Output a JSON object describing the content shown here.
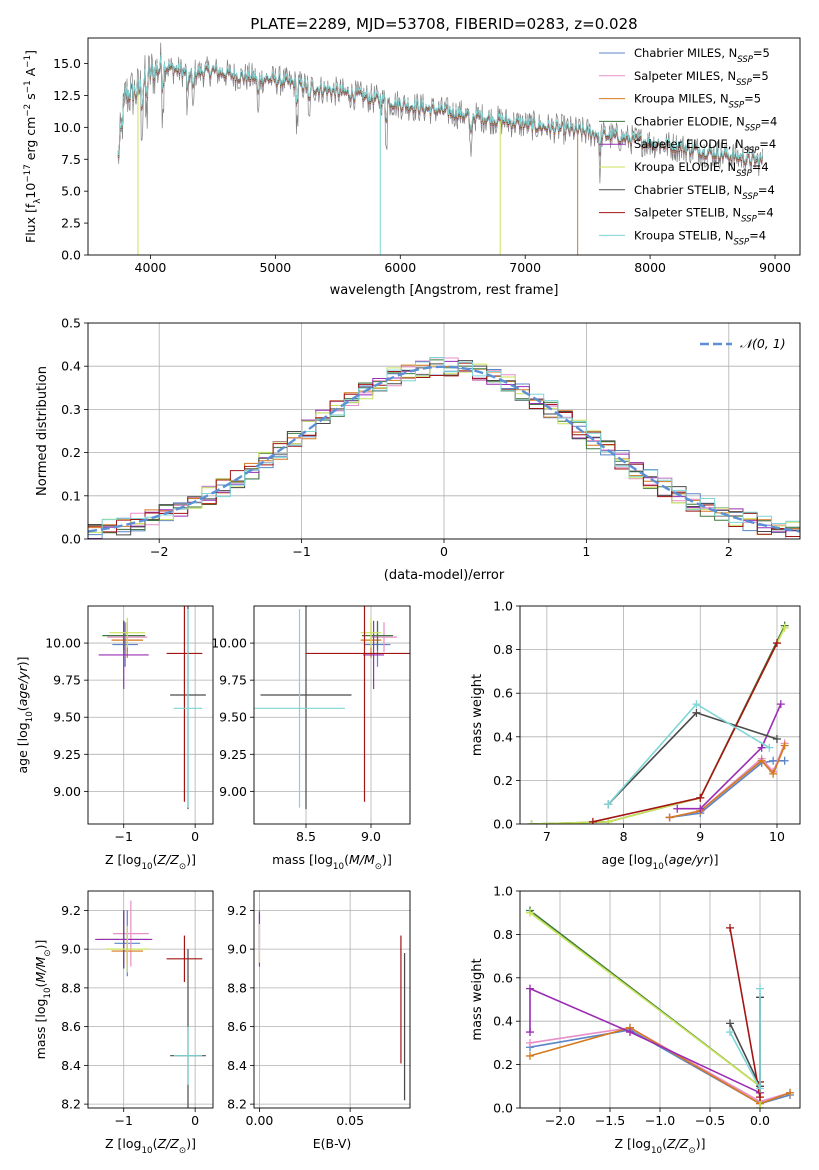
{
  "title": "PLATE=2289, MJD=53708, FIBERID=0283, z=0.028",
  "colors": {
    "Chabrier MILES": "#5b84c8",
    "Salpeter MILES": "#e88ec8",
    "Kroupa MILES": "#d4791c",
    "Chabrier ELODIE": "#3e7a3e",
    "Salpeter ELODIE": "#9b2db5",
    "Kroupa ELODIE": "#c9e35a",
    "Chabrier STELIB": "#4a4a4a",
    "Salpeter STELIB": "#a31515",
    "Kroupa STELIB": "#7fd6d6",
    "data": "#808080",
    "normal": "#5b8fd6"
  },
  "chart_data": [
    {
      "id": "spectrum",
      "type": "line",
      "title": "PLATE=2289, MJD=53708, FIBERID=0283, z=0.028",
      "xlabel": "wavelength [Angstrom, rest frame]",
      "ylabel": "Flux [f_λ 10^-17 erg cm^-2 s^-1 A^-1]",
      "xlim": [
        3500,
        9200
      ],
      "ylim": [
        0,
        17
      ],
      "xticks": [
        "4000",
        "5000",
        "6000",
        "7000",
        "8000",
        "9000"
      ],
      "yticks": [
        "0.0",
        "2.5",
        "5.0",
        "7.5",
        "10.0",
        "12.5",
        "15.0"
      ],
      "legend": "top-right",
      "legend_entries": [
        {
          "label": "Chabrier MILES, N",
          "sub": "SSP",
          "tail": "=5"
        },
        {
          "label": "Salpeter MILES, N",
          "sub": "SSP",
          "tail": "=5"
        },
        {
          "label": "Kroupa MILES, N",
          "sub": "SSP",
          "tail": "=5"
        },
        {
          "label": "Chabrier ELODIE, N",
          "sub": "SSP",
          "tail": "=4"
        },
        {
          "label": "Salpeter ELODIE, N",
          "sub": "SSP",
          "tail": "=4"
        },
        {
          "label": "Kroupa ELODIE, N",
          "sub": "SSP",
          "tail": "=4"
        },
        {
          "label": "Chabrier STELIB, N",
          "sub": "SSP",
          "tail": "=4"
        },
        {
          "label": "Salpeter STELIB, N",
          "sub": "SSP",
          "tail": "=4"
        },
        {
          "label": "Kroupa STELIB, N",
          "sub": "SSP",
          "tail": "=4"
        }
      ],
      "continuum": {
        "x": [
          3740,
          3800,
          3900,
          4000,
          4100,
          4200,
          4300,
          4500,
          4700,
          5000,
          5300,
          5600,
          6000,
          6500,
          7000,
          7500,
          8000,
          8500,
          8900
        ],
        "y": [
          7.5,
          12.5,
          12.8,
          14.2,
          14.8,
          14.5,
          14.2,
          14.4,
          14.0,
          13.7,
          13.1,
          12.6,
          11.8,
          11.0,
          10.2,
          9.6,
          8.8,
          8.0,
          7.3
        ]
      },
      "dropouts": [
        {
          "series": "Kroupa ELODIE",
          "x": 3900
        },
        {
          "series": "Kroupa STELIB",
          "x": 5840
        },
        {
          "series": "Kroupa ELODIE",
          "x": 6800
        },
        {
          "series": "Kroupa MILES",
          "x": 7420
        }
      ]
    },
    {
      "id": "residuals",
      "type": "line",
      "xlabel": "(data-model)/error",
      "ylabel": "Normed distribution",
      "xlim": [
        -2.5,
        2.5
      ],
      "ylim": [
        0,
        0.5
      ],
      "xticks": [
        "−2",
        "−1",
        "0",
        "1",
        "2"
      ],
      "yticks": [
        "0.0",
        "0.1",
        "0.2",
        "0.3",
        "0.4",
        "0.5"
      ],
      "legend": "top-right",
      "normal_label": "𝒩(0, 1)"
    },
    {
      "id": "age_vs_Z",
      "type": "scatter",
      "xlabel": "Z [log10(Z/Z⊙)]",
      "ylabel": "age [log10(age/yr)]",
      "xlim": [
        -1.5,
        0.25
      ],
      "ylim": [
        8.78,
        10.25
      ],
      "xticks": [
        "−1",
        "0"
      ],
      "yticks": [
        "9.00",
        "9.25",
        "9.50",
        "9.75",
        "10.00"
      ],
      "points": [
        {
          "series": "Chabrier MILES",
          "x": -0.98,
          "y": 9.99,
          "xerr": 0.18,
          "yerr": 0.15
        },
        {
          "series": "Salpeter MILES",
          "x": -0.95,
          "y": 10.04,
          "xerr": 0.28,
          "yerr": 0.1
        },
        {
          "series": "Kroupa MILES",
          "x": -0.95,
          "y": 10.02,
          "xerr": 0.22,
          "yerr": 0.12
        },
        {
          "series": "Chabrier ELODIE",
          "x": -1.0,
          "y": 10.05,
          "xerr": 0.3,
          "yerr": 0.1
        },
        {
          "series": "Salpeter ELODIE",
          "x": -1.0,
          "y": 9.92,
          "xerr": 0.35,
          "yerr": 0.23
        },
        {
          "series": "Kroupa ELODIE",
          "x": -0.95,
          "y": 10.07,
          "xerr": 0.25,
          "yerr": 0.1
        },
        {
          "series": "Chabrier STELIB",
          "x": -0.1,
          "y": 9.65,
          "xerr": 0.25,
          "yerr": 0.77
        },
        {
          "series": "Salpeter STELIB",
          "x": -0.15,
          "y": 9.93,
          "xerr": 0.25,
          "yerr": 1.0
        },
        {
          "series": "Kroupa STELIB",
          "x": -0.1,
          "y": 9.56,
          "xerr": 0.2,
          "yerr": 0.67
        }
      ]
    },
    {
      "id": "age_vs_mass",
      "type": "scatter",
      "xlabel": "mass [log10(M/M⊙)]",
      "ylabel": "",
      "xlim": [
        8.1,
        9.3
      ],
      "ylim": [
        8.78,
        10.25
      ],
      "xticks": [
        "8.5",
        "9.0"
      ],
      "yticks": [
        "9.00",
        "9.25",
        "9.50",
        "9.75",
        "10.00"
      ],
      "points": [
        {
          "series": "Chabrier MILES",
          "x": 9.05,
          "y": 9.99,
          "xerr": 0.1,
          "yerr": 0.15
        },
        {
          "series": "Salpeter MILES",
          "x": 9.1,
          "y": 10.04,
          "xerr": 0.1,
          "yerr": 0.1
        },
        {
          "series": "Kroupa MILES",
          "x": 9.0,
          "y": 10.02,
          "xerr": 0.08,
          "yerr": 0.12
        },
        {
          "series": "Chabrier ELODIE",
          "x": 9.05,
          "y": 10.05,
          "xerr": 0.12,
          "yerr": 0.1
        },
        {
          "series": "Salpeter ELODIE",
          "x": 9.02,
          "y": 9.92,
          "xerr": 0.08,
          "yerr": 0.23
        },
        {
          "series": "Kroupa ELODIE",
          "x": 9.0,
          "y": 10.07,
          "xerr": 0.08,
          "yerr": 0.1
        },
        {
          "series": "Chabrier STELIB",
          "x": 8.5,
          "y": 9.65,
          "xerr": 0.35,
          "yerr": 0.77
        },
        {
          "series": "Salpeter STELIB",
          "x": 8.95,
          "y": 9.93,
          "xerr": 0.45,
          "yerr": 1.0
        },
        {
          "series": "Kroupa STELIB",
          "x": 8.45,
          "y": 9.56,
          "xerr": 0.35,
          "yerr": 0.67
        }
      ]
    },
    {
      "id": "weight_vs_age",
      "type": "line",
      "xlabel": "age [log10(age/yr)]",
      "ylabel": "mass weight",
      "xlim": [
        6.65,
        10.3
      ],
      "ylim": [
        0,
        1
      ],
      "xticks": [
        "7",
        "8",
        "9",
        "10"
      ],
      "yticks": [
        "0.0",
        "0.2",
        "0.4",
        "0.6",
        "0.8",
        "1.0"
      ],
      "series": [
        {
          "name": "Chabrier MILES",
          "x": [
            8.6,
            9.0,
            9.8,
            9.95,
            10.1
          ],
          "y": [
            0.03,
            0.05,
            0.28,
            0.29,
            0.29
          ]
        },
        {
          "name": "Salpeter MILES",
          "x": [
            8.6,
            9.0,
            9.8,
            9.95,
            10.1
          ],
          "y": [
            0.03,
            0.06,
            0.3,
            0.24,
            0.37
          ]
        },
        {
          "name": "Kroupa MILES",
          "x": [
            8.6,
            9.0,
            9.8,
            9.95,
            10.1
          ],
          "y": [
            0.03,
            0.06,
            0.29,
            0.23,
            0.36
          ]
        },
        {
          "name": "Chabrier ELODIE",
          "x": [
            6.8,
            7.8,
            9.0,
            10.1
          ],
          "y": [
            0.0,
            0.01,
            0.12,
            0.91
          ]
        },
        {
          "name": "Salpeter ELODIE",
          "x": [
            8.7,
            9.0,
            9.8,
            10.05
          ],
          "y": [
            0.07,
            0.07,
            0.35,
            0.55
          ]
        },
        {
          "name": "Kroupa ELODIE",
          "x": [
            6.8,
            7.8,
            9.0,
            10.1
          ],
          "y": [
            0.0,
            0.01,
            0.12,
            0.9
          ]
        },
        {
          "name": "Chabrier STELIB",
          "x": [
            7.8,
            8.95,
            10.0
          ],
          "y": [
            0.09,
            0.51,
            0.39
          ]
        },
        {
          "name": "Salpeter STELIB",
          "x": [
            7.6,
            9.0,
            10.0
          ],
          "y": [
            0.01,
            0.12,
            0.83
          ]
        },
        {
          "name": "Kroupa STELIB",
          "x": [
            7.8,
            8.95,
            9.9
          ],
          "y": [
            0.09,
            0.55,
            0.35
          ]
        }
      ]
    },
    {
      "id": "mass_vs_Z",
      "type": "scatter",
      "xlabel": "Z [log10(Z/Z⊙)]",
      "ylabel": "mass [log10(M/M⊙)]",
      "xlim": [
        -1.5,
        0.25
      ],
      "ylim": [
        8.18,
        9.3
      ],
      "xticks": [
        "−1",
        "0"
      ],
      "yticks": [
        "8.2",
        "8.4",
        "8.6",
        "8.8",
        "9.0",
        "9.2"
      ],
      "points": [
        {
          "series": "Chabrier MILES",
          "x": -0.95,
          "y": 9.03,
          "xerr": 0.18,
          "yerr": 0.17
        },
        {
          "series": "Salpeter MILES",
          "x": -0.9,
          "y": 9.08,
          "xerr": 0.25,
          "yerr": 0.17
        },
        {
          "series": "Kroupa MILES",
          "x": -0.95,
          "y": 8.99,
          "xerr": 0.22,
          "yerr": 0.07
        },
        {
          "series": "Chabrier ELODIE",
          "x": -1.0,
          "y": 9.05,
          "xerr": 0.35,
          "yerr": 0.15
        },
        {
          "series": "Salpeter ELODIE",
          "x": -1.0,
          "y": 9.05,
          "xerr": 0.4,
          "yerr": 0.15
        },
        {
          "series": "Kroupa ELODIE",
          "x": -0.95,
          "y": 9.0,
          "xerr": 0.3,
          "yerr": 0.12
        },
        {
          "series": "Chabrier STELIB",
          "x": -0.1,
          "y": 8.45,
          "xerr": 0.25,
          "yerr": 0.55
        },
        {
          "series": "Salpeter STELIB",
          "x": -0.15,
          "y": 8.95,
          "xerr": 0.25,
          "yerr": 0.12
        },
        {
          "series": "Kroupa STELIB",
          "x": -0.1,
          "y": 8.45,
          "xerr": 0.2,
          "yerr": 0.15
        }
      ]
    },
    {
      "id": "mass_vs_EBV",
      "type": "scatter",
      "xlabel": "E(B-V)",
      "ylabel": "",
      "xlim": [
        -0.003,
        0.083
      ],
      "ylim": [
        8.18,
        9.3
      ],
      "xticks": [
        "0.00",
        "0.05"
      ],
      "yticks": [
        "8.2",
        "8.4",
        "8.6",
        "8.8",
        "9.0",
        "9.2"
      ],
      "points": [
        {
          "series": "Chabrier MILES",
          "x": 0.0,
          "y": 9.1,
          "yerr": 0.1
        },
        {
          "series": "Salpeter ELODIE",
          "x": 0.0,
          "y": 9.05,
          "yerr": 0.14
        },
        {
          "series": "Kroupa ELODIE",
          "x": 0.0,
          "y": 9.03,
          "yerr": 0.1
        },
        {
          "series": "Salpeter STELIB",
          "x": 0.078,
          "y": 8.74,
          "yerr": 0.33
        },
        {
          "series": "Kroupa STELIB",
          "x": 0.08,
          "y": 8.6,
          "yerr": 0.38
        },
        {
          "series": "Chabrier STELIB",
          "x": 0.08,
          "y": 8.6,
          "yerr": 0.38
        }
      ]
    },
    {
      "id": "weight_vs_Z",
      "type": "line",
      "xlabel": "Z [log10(Z/Z⊙)]",
      "ylabel": "mass weight",
      "xlim": [
        -2.4,
        0.4
      ],
      "ylim": [
        0,
        1
      ],
      "xticks": [
        "−2.0",
        "−1.5",
        "−1.0",
        "−0.5",
        "0.0"
      ],
      "yticks": [
        "0.0",
        "0.2",
        "0.4",
        "0.6",
        "0.8",
        "1.0"
      ],
      "series": [
        {
          "name": "Chabrier MILES",
          "x": [
            -2.3,
            -1.3,
            0.0,
            0.3
          ],
          "y": [
            0.28,
            0.36,
            0.02,
            0.06
          ]
        },
        {
          "name": "Salpeter MILES",
          "x": [
            -2.3,
            -1.3,
            0.0,
            0.3
          ],
          "y": [
            0.3,
            0.37,
            0.03,
            0.07
          ]
        },
        {
          "name": "Kroupa MILES",
          "x": [
            -2.3,
            -1.3,
            0.0,
            0.3
          ],
          "y": [
            0.24,
            0.37,
            0.02,
            0.07
          ]
        },
        {
          "name": "Chabrier ELODIE",
          "x": [
            -2.3,
            0.0,
            0.0
          ],
          "y": [
            0.91,
            0.1,
            0.0
          ]
        },
        {
          "name": "Salpeter ELODIE",
          "x": [
            -2.3,
            -2.3,
            -1.3,
            0.0
          ],
          "y": [
            0.35,
            0.55,
            0.35,
            0.07
          ]
        },
        {
          "name": "Kroupa ELODIE",
          "x": [
            -2.3,
            0.0,
            0.0
          ],
          "y": [
            0.9,
            0.1,
            0.0
          ]
        },
        {
          "name": "Chabrier STELIB",
          "x": [
            -0.3,
            0.0,
            0.0
          ],
          "y": [
            0.39,
            0.1,
            0.51
          ]
        },
        {
          "name": "Salpeter STELIB",
          "x": [
            -0.3,
            0.0,
            0.0
          ],
          "y": [
            0.83,
            0.05,
            0.12
          ]
        },
        {
          "name": "Kroupa STELIB",
          "x": [
            -0.3,
            0.0,
            0.0
          ],
          "y": [
            0.35,
            0.09,
            0.55
          ]
        }
      ]
    }
  ]
}
